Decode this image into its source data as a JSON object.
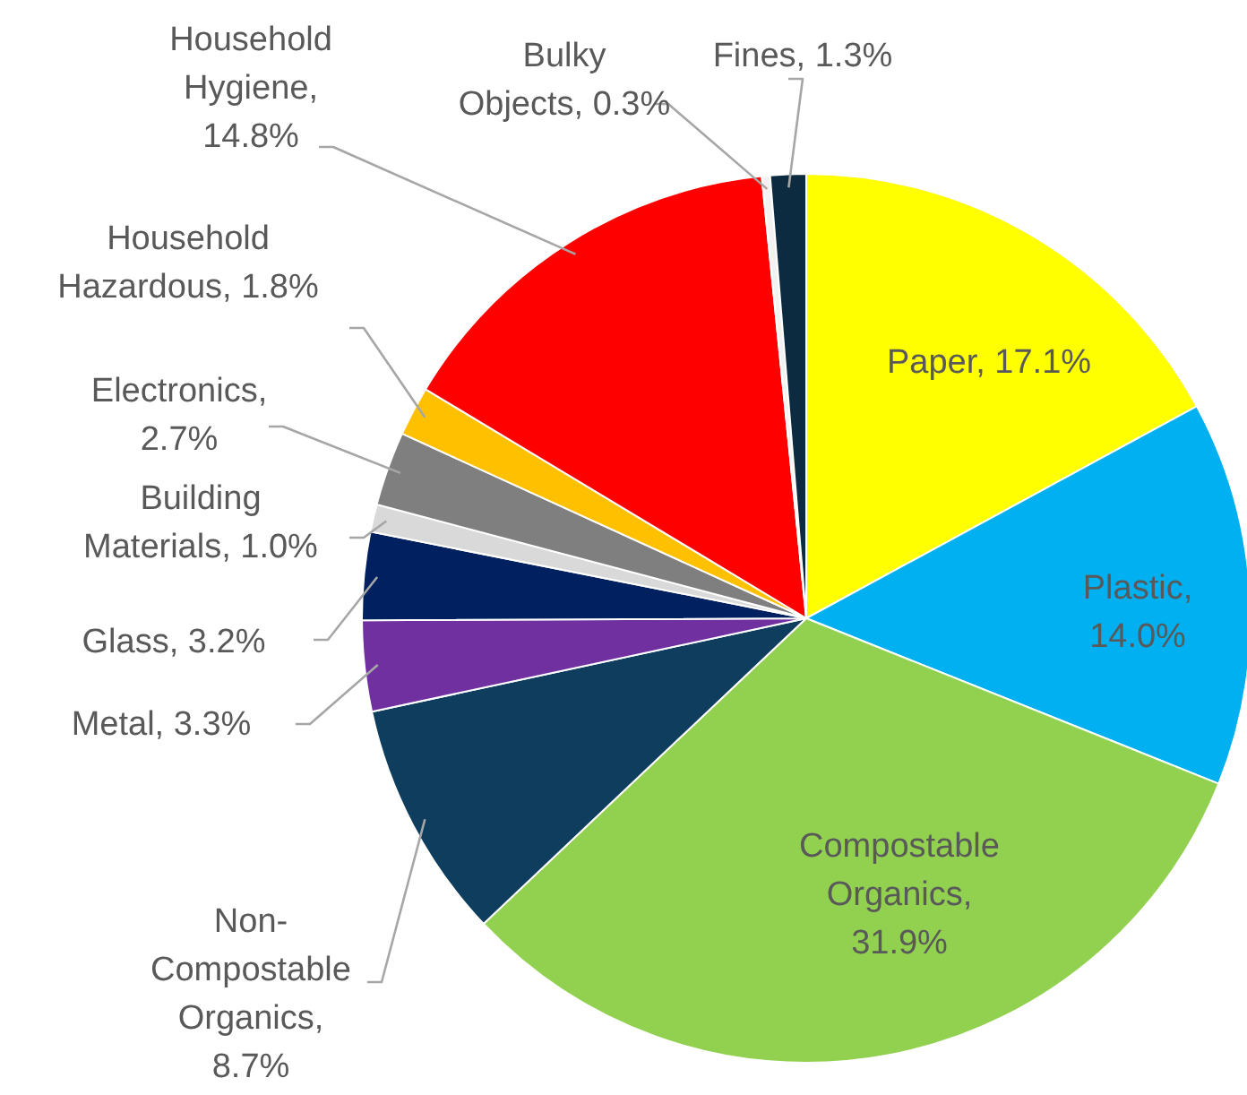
{
  "chart_data": {
    "type": "pie",
    "categories": [
      "Paper, 17.1%",
      "Plastic, 14.0%",
      "Compostable Organics, 31.9%",
      "Non-Compostable Organics, 8.7%",
      "Metal, 3.3%",
      "Glass, 3.2%",
      "Building Materials, 1.0%",
      "Electronics, 2.7%",
      "Household Hazardous, 1.8%",
      "Household Hygiene, 14.8%",
      "Bulky Objects, 0.3%",
      "Fines, 1.3%"
    ],
    "values": [
      17.1,
      14.0,
      31.9,
      8.7,
      3.3,
      3.2,
      1.0,
      2.7,
      1.8,
      14.8,
      0.3,
      1.3
    ],
    "colors": [
      "#ffff00",
      "#00b0f0",
      "#92d050",
      "#0e3d5e",
      "#7030a0",
      "#002060",
      "#d9d9d9",
      "#7f7f7f",
      "#ffc000",
      "#ff0000",
      "#f2f2f2",
      "#0c2a40"
    ]
  }
}
